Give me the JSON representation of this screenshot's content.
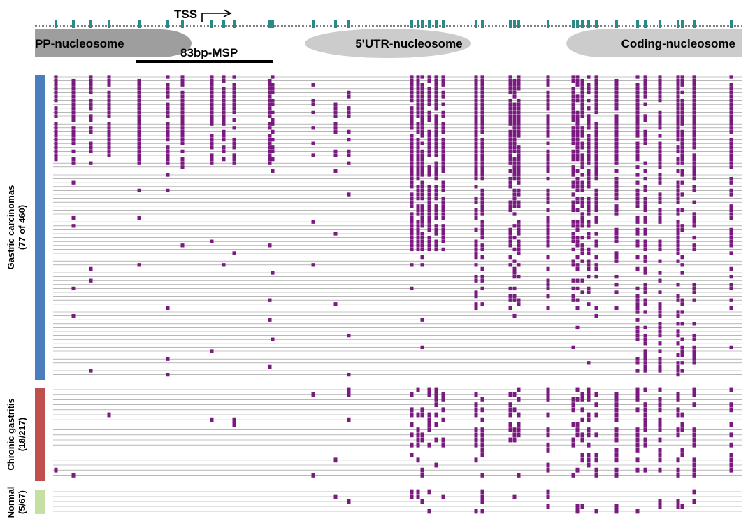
{
  "annotations": {
    "tss_label": "TSS",
    "msp_label": "83bp-MSP"
  },
  "nucleosomes": [
    {
      "label": "PP-nucleosome"
    },
    {
      "label": "5'UTR-nucleosome"
    },
    {
      "label": "Coding-nucleosome"
    }
  ],
  "groups": [
    {
      "name": "Gastric carcinomas",
      "count": "(77 of 460)",
      "color": "#4a7ebd",
      "rows": 77
    },
    {
      "name": "Chronic gastritis",
      "count": "(18/217)",
      "color": "#c0504d",
      "rows": 18
    },
    {
      "name": "Normal",
      "count": "(5/67)",
      "color": "#c4e0a5",
      "rows": 5
    }
  ],
  "colors": {
    "methylated": "#7a1a80",
    "cpg_tick": "#2a8a86",
    "nucleosome_fill": "#c8c8c8",
    "nucleosome_dark": "#9a9a9a",
    "row_line": "#8c8c8c"
  },
  "cpg_site_count": 40
}
